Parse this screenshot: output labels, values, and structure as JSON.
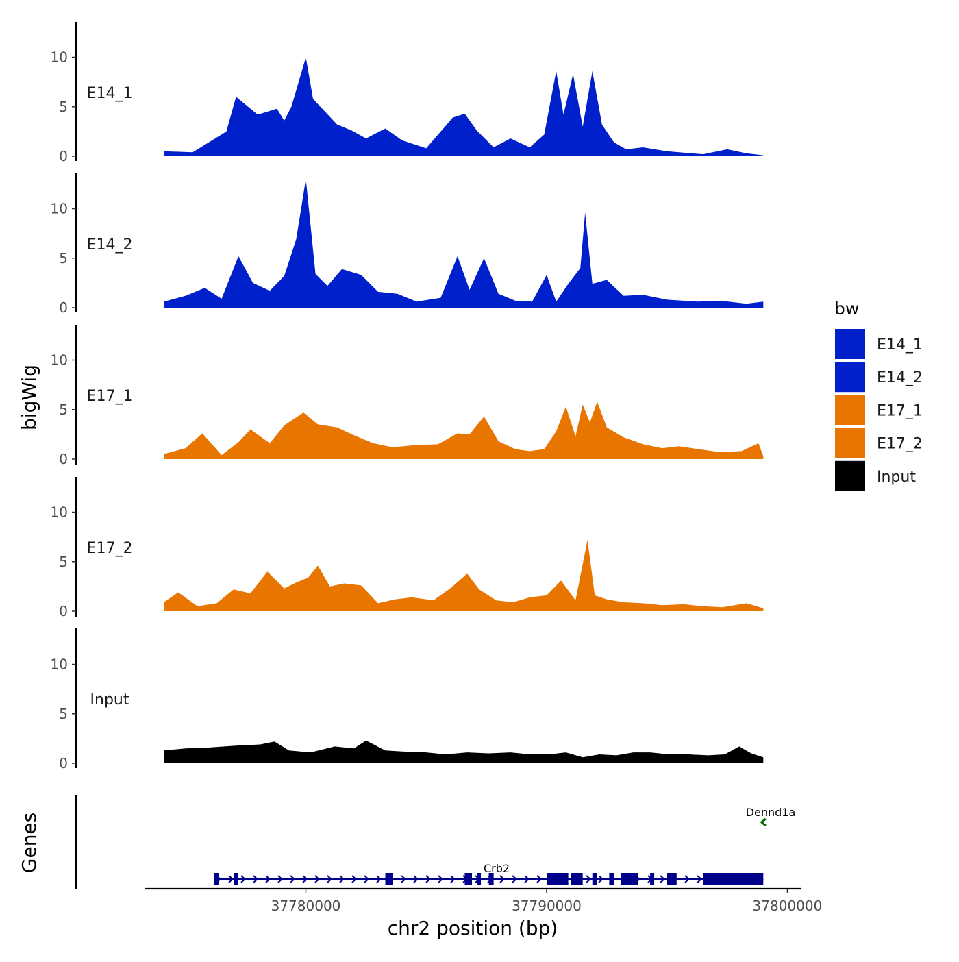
{
  "chart_data": {
    "type": "area",
    "panel_ylabel": "bigWig",
    "genes_ylabel": "Genes",
    "xlabel": "chr2 position (bp)",
    "xlim": [
      37773300,
      37800300
    ],
    "data_x_range": [
      37774100,
      37799000
    ],
    "x_ticks": [
      37780000,
      37790000,
      37800000
    ],
    "x_tick_labels": [
      "37780000",
      "37790000",
      "37800000"
    ],
    "ylim": [
      0,
      13.5
    ],
    "y_ticks": [
      0,
      5,
      10
    ],
    "y_tick_labels": [
      "0",
      "5",
      "10"
    ],
    "legend": {
      "title": "bw",
      "entries": [
        {
          "name": "E14_1",
          "color": "#0020CC"
        },
        {
          "name": "E14_2",
          "color": "#0020CC"
        },
        {
          "name": "E17_1",
          "color": "#E87500"
        },
        {
          "name": "E17_2",
          "color": "#E87500"
        },
        {
          "name": "Input",
          "color": "#000000"
        }
      ]
    },
    "tracks": [
      {
        "name": "E14_1",
        "color": "#0020CC",
        "x": [
          37774100,
          37775300,
          37776700,
          37777100,
          37778000,
          37778800,
          37779100,
          37779400,
          37780000,
          37780300,
          37780800,
          37781300,
          37781900,
          37782500,
          37783300,
          37784000,
          37785000,
          37786100,
          37786600,
          37787100,
          37787800,
          37788500,
          37789300,
          37789900,
          37790400,
          37790700,
          37791100,
          37791500,
          37791900,
          37792300,
          37792800,
          37793300,
          37794000,
          37795000,
          37796500,
          37797500,
          37798300,
          37799000
        ],
        "y": [
          0.5,
          0.4,
          2.5,
          6.0,
          4.2,
          4.8,
          3.6,
          5.0,
          10.0,
          5.8,
          4.5,
          3.2,
          2.6,
          1.8,
          2.8,
          1.6,
          0.8,
          3.9,
          4.3,
          2.6,
          0.9,
          1.8,
          0.9,
          2.2,
          8.6,
          4.2,
          8.3,
          3.0,
          8.6,
          3.2,
          1.4,
          0.7,
          0.9,
          0.5,
          0.2,
          0.7,
          0.3,
          0.1
        ]
      },
      {
        "name": "E14_2",
        "color": "#0020CC",
        "x": [
          37774100,
          37775000,
          37775800,
          37776500,
          37777200,
          37777800,
          37778500,
          37779100,
          37779600,
          37780000,
          37780400,
          37780900,
          37781500,
          37782300,
          37783000,
          37783800,
          37784600,
          37785600,
          37786300,
          37786800,
          37787400,
          37788000,
          37788700,
          37789400,
          37790000,
          37790400,
          37790900,
          37791400,
          37791600,
          37791900,
          37792500,
          37793200,
          37794000,
          37795000,
          37796300,
          37797200,
          37798300,
          37799000
        ],
        "y": [
          0.6,
          1.2,
          2.0,
          0.9,
          5.2,
          2.5,
          1.7,
          3.2,
          6.9,
          13.0,
          3.4,
          2.2,
          3.9,
          3.3,
          1.6,
          1.4,
          0.6,
          1.0,
          5.2,
          1.8,
          5.0,
          1.4,
          0.7,
          0.6,
          3.3,
          0.6,
          2.4,
          4.0,
          9.6,
          2.4,
          2.8,
          1.2,
          1.3,
          0.8,
          0.6,
          0.7,
          0.4,
          0.6
        ]
      },
      {
        "name": "E17_1",
        "color": "#E87500",
        "x": [
          37774100,
          37775000,
          37775700,
          37776500,
          37777200,
          37777700,
          37778500,
          37779100,
          37779900,
          37780500,
          37781300,
          37782000,
          37782800,
          37783600,
          37784500,
          37785500,
          37786300,
          37786800,
          37787400,
          37788000,
          37788700,
          37789300,
          37789900,
          37790400,
          37790800,
          37791200,
          37791500,
          37791800,
          37792100,
          37792500,
          37793200,
          37794000,
          37794800,
          37795500,
          37796300,
          37797200,
          37798100,
          37798800,
          37799000
        ],
        "y": [
          0.5,
          1.1,
          2.6,
          0.4,
          1.7,
          3.0,
          1.6,
          3.4,
          4.7,
          3.5,
          3.2,
          2.4,
          1.6,
          1.2,
          1.4,
          1.5,
          2.6,
          2.5,
          4.3,
          1.8,
          1.0,
          0.8,
          1.0,
          2.8,
          5.3,
          2.3,
          5.5,
          3.7,
          5.8,
          3.2,
          2.2,
          1.5,
          1.1,
          1.3,
          1.0,
          0.7,
          0.8,
          1.6,
          0.3
        ]
      },
      {
        "name": "E17_2",
        "color": "#E87500",
        "x": [
          37774100,
          37774700,
          37775500,
          37776300,
          37777000,
          37777700,
          37778400,
          37779100,
          37779600,
          37780100,
          37780500,
          37781000,
          37781600,
          37782300,
          37783000,
          37783700,
          37784400,
          37785300,
          37786000,
          37786700,
          37787200,
          37787900,
          37788600,
          37789300,
          37790000,
          37790600,
          37791200,
          37791700,
          37792000,
          37792500,
          37793200,
          37794000,
          37794800,
          37795700,
          37796500,
          37797300,
          37798300,
          37799000
        ],
        "y": [
          0.9,
          1.9,
          0.5,
          0.8,
          2.2,
          1.8,
          4.0,
          2.3,
          2.9,
          3.4,
          4.6,
          2.5,
          2.8,
          2.6,
          0.8,
          1.2,
          1.4,
          1.1,
          2.3,
          3.8,
          2.2,
          1.1,
          0.9,
          1.4,
          1.6,
          3.1,
          1.1,
          7.2,
          1.6,
          1.2,
          0.9,
          0.8,
          0.6,
          0.7,
          0.5,
          0.4,
          0.8,
          0.3
        ]
      },
      {
        "name": "Input",
        "color": "#000000",
        "x": [
          37774100,
          37775000,
          37776000,
          37777200,
          37778100,
          37778700,
          37779300,
          37780200,
          37781200,
          37782000,
          37782500,
          37783300,
          37784000,
          37785000,
          37785800,
          37786700,
          37787600,
          37788500,
          37789300,
          37790100,
          37790800,
          37791500,
          37792200,
          37792900,
          37793600,
          37794300,
          37795100,
          37795900,
          37796700,
          37797400,
          37798000,
          37798500,
          37799000
        ],
        "y": [
          1.3,
          1.5,
          1.6,
          1.8,
          1.9,
          2.2,
          1.3,
          1.1,
          1.7,
          1.5,
          2.3,
          1.3,
          1.2,
          1.1,
          0.9,
          1.1,
          1.0,
          1.1,
          0.9,
          0.9,
          1.1,
          0.6,
          0.9,
          0.8,
          1.1,
          1.1,
          0.9,
          0.9,
          0.8,
          0.9,
          1.7,
          1.0,
          0.6
        ]
      }
    ],
    "genes": [
      {
        "name": "Crb2",
        "color": "#00008B",
        "start": 37776200,
        "end": 37799000,
        "strand": "+",
        "exons": [
          [
            37776200,
            37776400
          ],
          [
            37777000,
            37777100
          ],
          [
            37783300,
            37783600
          ],
          [
            37786600,
            37786900
          ],
          [
            37787100,
            37787200
          ],
          [
            37787600,
            37787800
          ],
          [
            37790000,
            37790900
          ],
          [
            37791000,
            37791500
          ],
          [
            37791900,
            37792100
          ],
          [
            37792600,
            37792800
          ],
          [
            37793100,
            37793800
          ],
          [
            37794300,
            37794400
          ],
          [
            37795000,
            37795400
          ],
          [
            37796500,
            37799000
          ]
        ]
      },
      {
        "name": "Dennd1a",
        "color": "#006400",
        "start": 37798900,
        "end": 37799100,
        "strand": "-",
        "exons": []
      }
    ]
  }
}
